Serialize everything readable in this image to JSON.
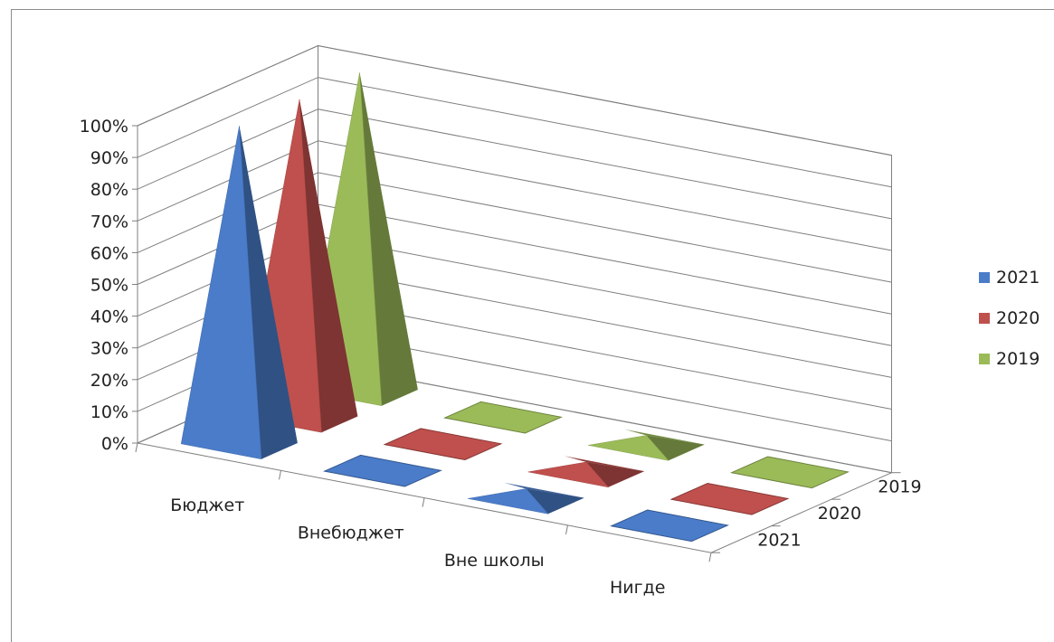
{
  "chart_data": {
    "type": "bar",
    "subtype": "3d-pyramid",
    "title": "",
    "categories": [
      "Бюджет",
      "Внебюджет",
      "Вне школы",
      "Нигде"
    ],
    "depth_labels": [
      "2021",
      "2020",
      "2019"
    ],
    "series": [
      {
        "name": "2021",
        "color": "#4a7cc9",
        "values": [
          100,
          0,
          3,
          0
        ]
      },
      {
        "name": "2020",
        "color": "#c0504d",
        "values": [
          100,
          0,
          3,
          0
        ]
      },
      {
        "name": "2019",
        "color": "#9bbb59",
        "values": [
          100,
          0,
          3,
          0
        ]
      }
    ],
    "ylim": [
      0,
      100
    ],
    "y_ticks": [
      "0%",
      "10%",
      "20%",
      "30%",
      "40%",
      "50%",
      "60%",
      "70%",
      "80%",
      "90%",
      "100%"
    ],
    "grid": true,
    "legend_position": "right"
  }
}
